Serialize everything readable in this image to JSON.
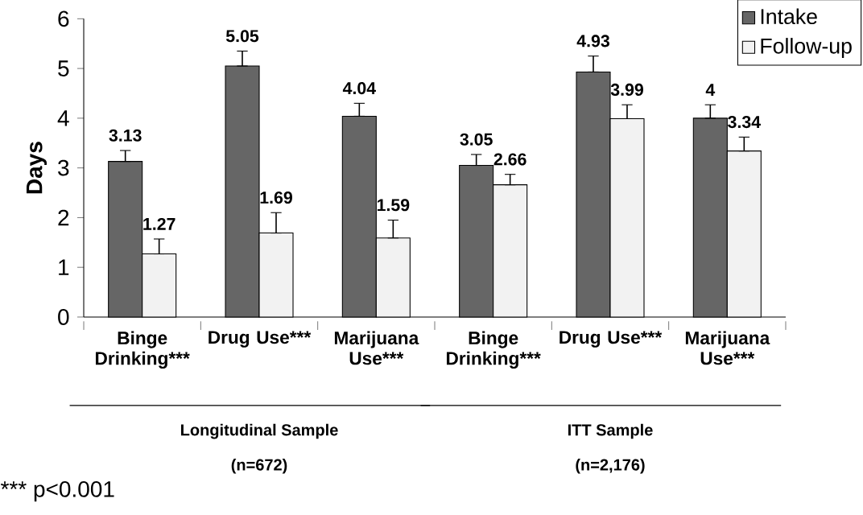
{
  "chart_data": {
    "type": "bar",
    "ylabel": "Days",
    "categories": [
      "Binge Drinking***",
      "Drug Use***",
      "Marijuana Use***",
      "Binge Drinking***",
      "Drug Use***",
      "Marijuana Use***"
    ],
    "series": [
      {
        "name": "Intake",
        "color": "#666666",
        "values": [
          3.13,
          5.05,
          4.04,
          3.05,
          4.93,
          4
        ],
        "errors": [
          [
            3.13,
            3.35
          ],
          [
            5.05,
            5.35
          ],
          [
            4.04,
            4.3
          ],
          [
            3.05,
            3.27
          ],
          [
            4.93,
            5.25
          ],
          [
            4,
            4.27
          ]
        ]
      },
      {
        "name": "Follow-up",
        "color": "#f2f2f2",
        "values": [
          1.27,
          1.69,
          1.59,
          2.66,
          3.99,
          3.34
        ],
        "errors": [
          [
            1.27,
            1.57
          ],
          [
            1.69,
            2.1
          ],
          [
            1.59,
            1.95
          ],
          [
            2.66,
            2.87
          ],
          [
            3.99,
            4.27
          ],
          [
            3.34,
            3.62
          ]
        ]
      }
    ],
    "ylim": [
      0,
      6
    ],
    "yticks": [
      0,
      1,
      2,
      3,
      4,
      5,
      6
    ],
    "data_labels": true,
    "legend": "top right",
    "grid": false,
    "annotations": [
      "Longitudinal Sample",
      "(n=672)",
      "ITT Sample",
      "(n=2,176)",
      "*** p<0.001"
    ]
  }
}
